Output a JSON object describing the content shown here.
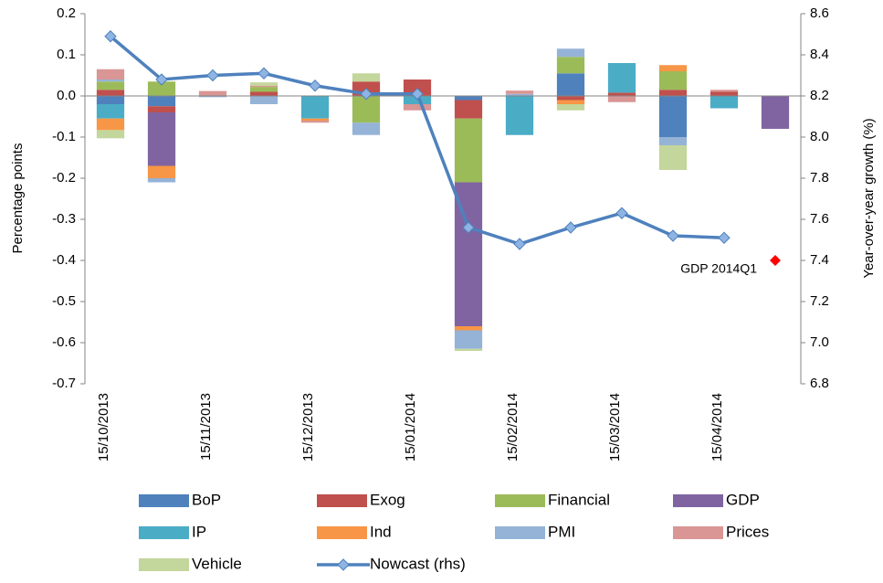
{
  "chart_data": {
    "type": "bar",
    "stacked": true,
    "y_label": "Percentage points",
    "y2_label": "Year-over-year growth (%)",
    "categories": [
      "15/10/2013",
      null,
      "15/11/2013",
      null,
      "15/12/2013",
      null,
      "15/01/2014",
      null,
      "15/02/2014",
      null,
      "15/03/2014",
      null,
      "15/04/2014",
      null
    ],
    "ylim": [
      -0.7,
      0.2
    ],
    "yticks": [
      -0.7,
      -0.6,
      -0.5,
      -0.4,
      -0.3,
      -0.2,
      -0.1,
      {
        "value": 0,
        "label": "0.0"
      },
      0.1,
      0.2
    ],
    "y2lim": [
      6.8,
      8.6
    ],
    "y2ticks": [
      6.8,
      {
        "value": 7,
        "label": "7.0"
      },
      7.2,
      7.4,
      7.6,
      7.8,
      {
        "value": 8,
        "label": "8.0"
      },
      8.2,
      8.4,
      8.6
    ],
    "series": [
      {
        "name": "BoP",
        "color": "#4f81bd",
        "values": [
          -0.02,
          -0.025,
          0,
          0,
          0,
          0,
          0,
          -0.01,
          0,
          0.055,
          0,
          -0.1,
          0,
          0
        ]
      },
      {
        "name": "Exog",
        "color": "#c0504d",
        "values": [
          0.015,
          -0.015,
          0,
          0.01,
          0,
          0.035,
          0.04,
          -0.045,
          0,
          -0.01,
          0.008,
          0.015,
          0.01,
          0
        ]
      },
      {
        "name": "Financial",
        "color": "#9bbb59",
        "values": [
          0.02,
          0.035,
          0,
          0.012,
          0,
          -0.065,
          0,
          -0.155,
          0,
          0.04,
          0,
          0.045,
          0,
          0
        ]
      },
      {
        "name": "GDP",
        "color": "#8064a2",
        "values": [
          0,
          -0.13,
          0,
          0,
          0,
          0,
          0,
          -0.35,
          0,
          0,
          0,
          0,
          0,
          -0.08
        ]
      },
      {
        "name": "IP",
        "color": "#4bacc6",
        "values": [
          -0.035,
          0,
          0,
          0,
          -0.055,
          0,
          -0.02,
          0,
          -0.095,
          0,
          0.072,
          0,
          -0.03,
          0
        ]
      },
      {
        "name": "Ind",
        "color": "#f79646",
        "values": [
          -0.028,
          -0.03,
          0,
          0,
          -0.005,
          0,
          0,
          -0.01,
          0,
          -0.01,
          0,
          0.015,
          0,
          0
        ]
      },
      {
        "name": "PMI",
        "color": "#95b3d7",
        "values": [
          0.005,
          -0.01,
          -0.003,
          -0.02,
          0,
          -0.03,
          0,
          -0.045,
          0.005,
          0.02,
          0,
          -0.02,
          0,
          0
        ]
      },
      {
        "name": "Prices",
        "color": "#d99694",
        "values": [
          0.025,
          0,
          0.012,
          0.003,
          -0.005,
          0,
          -0.015,
          0,
          0.008,
          0,
          -0.015,
          0,
          0.005,
          0
        ]
      },
      {
        "name": "Vehicle",
        "color": "#c3d69b",
        "values": [
          -0.02,
          0,
          0,
          0.008,
          0,
          0.02,
          0,
          -0.005,
          0,
          -0.015,
          0,
          -0.06,
          0,
          0
        ]
      },
      {
        "name": "Nowcast (rhs)",
        "color": "#4f81bd",
        "type": "line",
        "axis": "y2",
        "values": [
          8.49,
          8.28,
          8.3,
          8.31,
          8.25,
          8.21,
          8.21,
          7.56,
          7.48,
          7.56,
          7.63,
          7.52,
          7.51,
          null
        ]
      }
    ],
    "annotation": {
      "text": "GDP 2014Q1",
      "value": 7.4,
      "color": "#ff0000"
    }
  }
}
